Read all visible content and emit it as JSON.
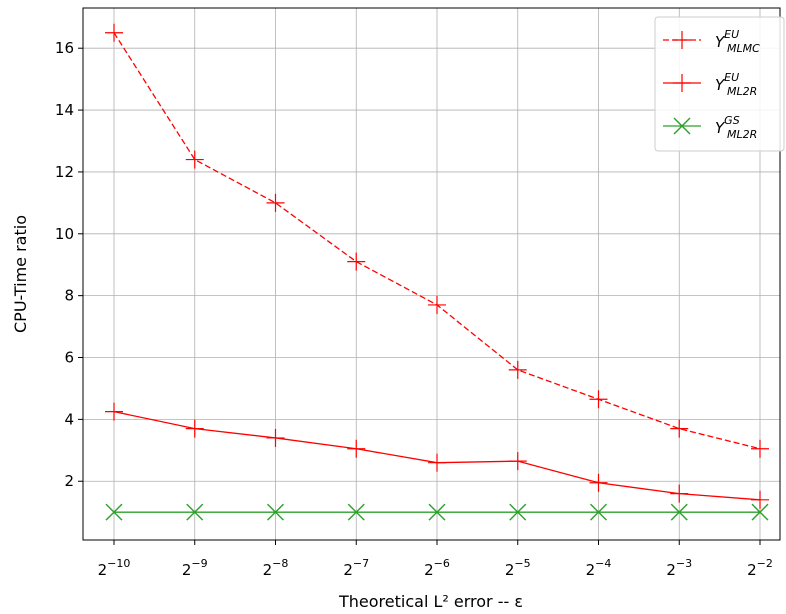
{
  "chart_data": {
    "type": "line",
    "xlabel": "Theoretical L² error -- ε",
    "ylabel": "CPU-Time ratio",
    "x_base": "2",
    "x_exponents": [
      -10,
      -9,
      -8,
      -7,
      -6,
      -5,
      -4,
      -3,
      -2
    ],
    "x_tick_labels": [
      "−10",
      "−9",
      "−8",
      "−7",
      "−6",
      "−5",
      "−4",
      "−3",
      "−2"
    ],
    "ylim": [
      0.1,
      17.3
    ],
    "y_ticks": [
      2,
      4,
      6,
      8,
      10,
      12,
      14,
      16
    ],
    "y_tick_labels": [
      "2",
      "4",
      "6",
      "8",
      "10",
      "12",
      "14",
      "16"
    ],
    "grid": true,
    "legend_position": "top-right",
    "series": [
      {
        "name": "Y_MLMC^EU",
        "legend_main": "Y",
        "legend_sup": "EU",
        "legend_sub": "MLMC",
        "color": "#ff0000",
        "linestyle": "dashed",
        "marker": "plus",
        "values": [
          16.5,
          12.4,
          11.0,
          9.1,
          7.7,
          5.6,
          4.65,
          3.7,
          3.05
        ]
      },
      {
        "name": "Y_ML2R^EU",
        "legend_main": "Y",
        "legend_sup": "EU",
        "legend_sub": "ML2R",
        "color": "#ff0000",
        "linestyle": "solid",
        "marker": "plus",
        "values": [
          4.25,
          3.7,
          3.4,
          3.05,
          2.6,
          2.65,
          1.95,
          1.6,
          1.4
        ]
      },
      {
        "name": "Y_ML2R^GS",
        "legend_main": "Y",
        "legend_sup": "GS",
        "legend_sub": "ML2R",
        "color": "#2ca02c",
        "linestyle": "solid",
        "marker": "x",
        "values": [
          1.0,
          1.0,
          1.0,
          1.0,
          1.0,
          1.0,
          1.0,
          1.0,
          1.0
        ]
      }
    ]
  }
}
